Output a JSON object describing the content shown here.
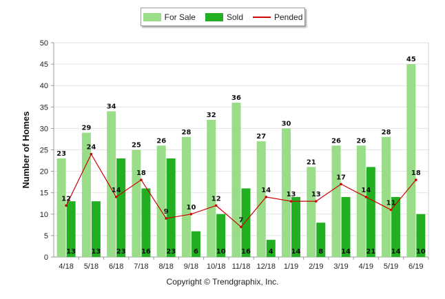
{
  "chart_data": {
    "type": "bar",
    "categories": [
      "4/18",
      "5/18",
      "6/18",
      "7/18",
      "8/18",
      "9/18",
      "10/18",
      "11/18",
      "12/18",
      "1/19",
      "2/19",
      "3/19",
      "4/19",
      "5/19",
      "6/19"
    ],
    "series": [
      {
        "name": "For Sale",
        "kind": "bar",
        "color": "#99dd88",
        "values": [
          23,
          29,
          34,
          25,
          26,
          28,
          32,
          36,
          27,
          30,
          21,
          26,
          26,
          28,
          45
        ]
      },
      {
        "name": "Sold",
        "kind": "bar",
        "color": "#22b022",
        "values": [
          13,
          13,
          23,
          16,
          23,
          6,
          10,
          16,
          4,
          14,
          8,
          14,
          21,
          14,
          10
        ]
      },
      {
        "name": "Pended",
        "kind": "line",
        "color": "#cc0000",
        "values": [
          12,
          24,
          14,
          18,
          9,
          10,
          12,
          7,
          14,
          13,
          13,
          17,
          14,
          11,
          18
        ]
      }
    ],
    "ylabel": "Number of Homes",
    "ylim": [
      0,
      50
    ],
    "yticks": [
      0,
      5,
      10,
      15,
      20,
      25,
      30,
      35,
      40,
      45,
      50
    ],
    "grid": true,
    "legend": "top-center"
  },
  "copyright": "Copyright © Trendgraphix, Inc."
}
